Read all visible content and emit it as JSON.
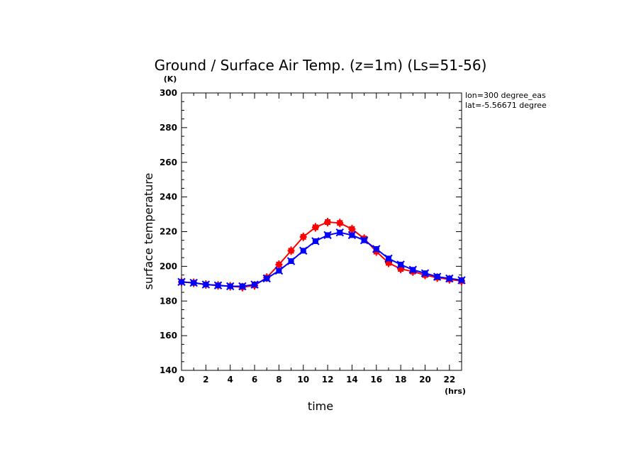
{
  "chart_data": {
    "type": "line",
    "title": "Ground / Surface Air Temp. (z=1m) (Ls=51-56)",
    "xlabel": "time",
    "ylabel": "surface temperature",
    "x_unit": "(hrs)",
    "y_unit": "(K)",
    "xlim": [
      0,
      23
    ],
    "ylim": [
      140,
      300
    ],
    "x_ticks": [
      "0",
      "2",
      "4",
      "6",
      "8",
      "10",
      "12",
      "14",
      "16",
      "18",
      "20",
      "22"
    ],
    "y_ticks": [
      "140",
      "160",
      "180",
      "200",
      "220",
      "240",
      "260",
      "280",
      "300"
    ],
    "annotations": [
      "lon=300 degree_eas",
      "lat=-5.56671 degree"
    ],
    "grid": false,
    "x": [
      0,
      1,
      2,
      3,
      4,
      5,
      6,
      7,
      8,
      9,
      10,
      11,
      12,
      13,
      14,
      15,
      16,
      17,
      18,
      19,
      20,
      21,
      22,
      23
    ],
    "series": [
      {
        "color": "#ff0000",
        "marker": "plus-square",
        "values": [
          191,
          190.5,
          189.5,
          189,
          188.5,
          188,
          189,
          193.5,
          201,
          209,
          217,
          222.5,
          225.5,
          225,
          221.5,
          216,
          208.5,
          202,
          198.5,
          197,
          195,
          193.5,
          192.5,
          191.5
        ]
      },
      {
        "color": "#0000ff",
        "marker": "x-square",
        "values": [
          191,
          190.5,
          189.5,
          189,
          188.5,
          188.5,
          189.5,
          193,
          197.5,
          203,
          209,
          214.5,
          218,
          219.5,
          218,
          215,
          210,
          204.5,
          201,
          198,
          196,
          194,
          193,
          192
        ]
      }
    ]
  }
}
